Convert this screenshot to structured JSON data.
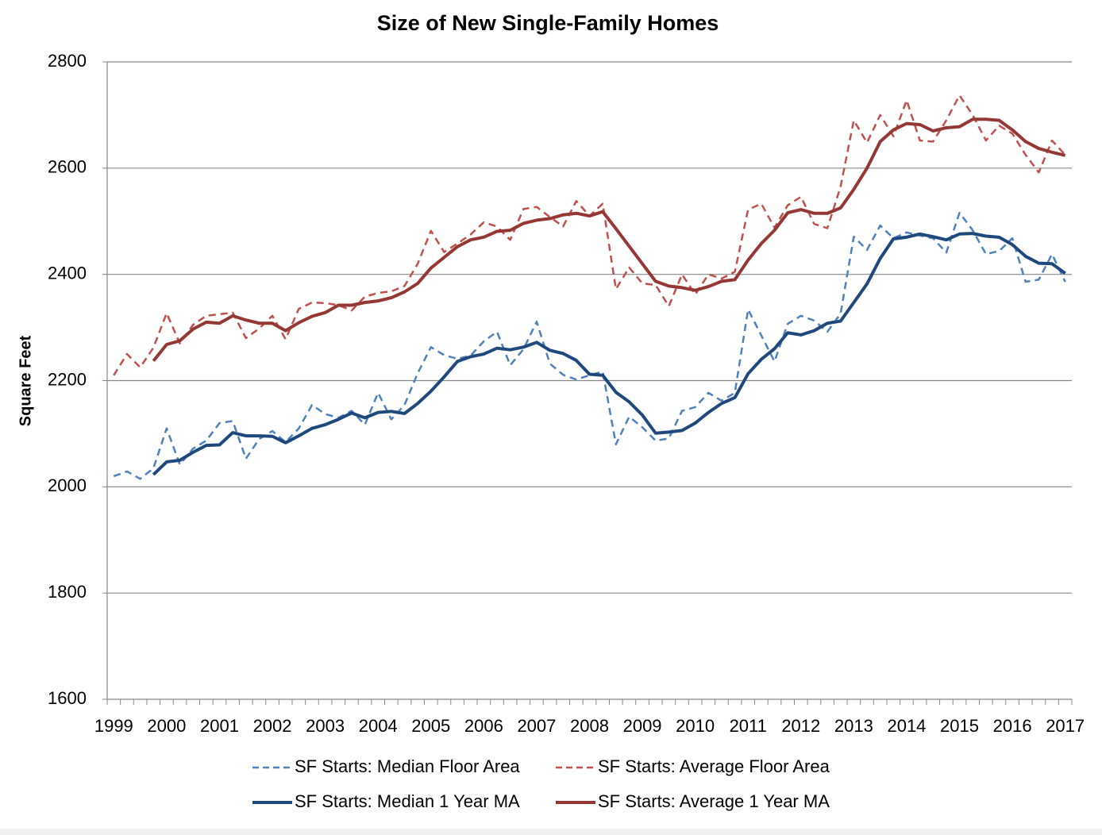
{
  "chart_data": {
    "type": "line",
    "title": "Size of New Single-Family Homes",
    "y_label": "Square Feet",
    "categories": [
      "1999",
      null,
      null,
      null,
      "2000",
      null,
      null,
      null,
      "2001",
      null,
      null,
      null,
      "2002",
      null,
      null,
      null,
      "2003",
      null,
      null,
      null,
      "2004",
      null,
      null,
      null,
      "2005",
      null,
      null,
      null,
      "2006",
      null,
      null,
      null,
      "2007",
      null,
      null,
      null,
      "2008",
      null,
      null,
      null,
      "2009",
      null,
      null,
      null,
      "2010",
      null,
      null,
      null,
      "2011",
      null,
      null,
      null,
      "2012",
      null,
      null,
      null,
      "2013",
      null,
      null,
      null,
      "2014",
      null,
      null,
      null,
      "2015",
      null,
      null,
      null,
      "2016",
      null,
      null,
      null,
      "2017"
    ],
    "series": [
      {
        "name": "SF Starts: Median Floor Area",
        "color": "#4f81bd",
        "dashed": true,
        "values": [
          2020,
          2029,
          2015,
          2035,
          2110,
          2042,
          2072,
          2087,
          2120,
          2124,
          2053,
          2090,
          2105,
          2084,
          2110,
          2154,
          2137,
          2130,
          2143,
          2117,
          2177,
          2127,
          2154,
          2214,
          2263,
          2248,
          2241,
          2247,
          2274,
          2292,
          2229,
          2259,
          2311,
          2232,
          2211,
          2202,
          2210,
          2217,
          2080,
          2132,
          2112,
          2087,
          2091,
          2143,
          2150,
          2177,
          2162,
          2177,
          2334,
          2285,
          2236,
          2307,
          2322,
          2313,
          2292,
          2326,
          2471,
          2446,
          2492,
          2468,
          2479,
          2473,
          2468,
          2441,
          2516,
          2483,
          2438,
          2444,
          2468,
          2386,
          2390,
          2438,
          2386
        ]
      },
      {
        "name": "SF Starts: Average Floor Area",
        "color": "#c0504d",
        "dashed": true,
        "values": [
          2210,
          2250,
          2225,
          2262,
          2327,
          2270,
          2305,
          2322,
          2325,
          2328,
          2280,
          2298,
          2322,
          2278,
          2335,
          2347,
          2346,
          2342,
          2332,
          2358,
          2365,
          2368,
          2378,
          2420,
          2482,
          2442,
          2458,
          2475,
          2498,
          2490,
          2465,
          2523,
          2527,
          2508,
          2490,
          2538,
          2510,
          2533,
          2372,
          2413,
          2383,
          2380,
          2340,
          2400,
          2362,
          2400,
          2392,
          2405,
          2522,
          2533,
          2488,
          2530,
          2546,
          2495,
          2487,
          2565,
          2690,
          2648,
          2700,
          2660,
          2728,
          2652,
          2650,
          2690,
          2737,
          2700,
          2652,
          2680,
          2665,
          2625,
          2592,
          2652,
          2625
        ]
      },
      {
        "name": "SF Starts: Median 1 Year MA",
        "color": "#1f497d",
        "dashed": false,
        "values": [
          null,
          null,
          null,
          2023,
          2047,
          2050,
          2065,
          2078,
          2079,
          2102,
          2096,
          2096,
          2095,
          2083,
          2096,
          2110,
          2117,
          2127,
          2139,
          2130,
          2140,
          2142,
          2138,
          2157,
          2180,
          2207,
          2236,
          2245,
          2250,
          2261,
          2258,
          2263,
          2272,
          2257,
          2251,
          2238,
          2212,
          2210,
          2178,
          2160,
          2135,
          2101,
          2103,
          2106,
          2120,
          2140,
          2157,
          2168,
          2213,
          2240,
          2260,
          2290,
          2286,
          2294,
          2308,
          2312,
          2347,
          2382,
          2430,
          2467,
          2470,
          2476,
          2471,
          2465,
          2476,
          2477,
          2472,
          2470,
          2456,
          2434,
          2421,
          2420,
          2402
        ]
      },
      {
        "name": "SF Starts: Average 1 Year MA",
        "color": "#953735",
        "dashed": false,
        "values": [
          null,
          null,
          null,
          2237,
          2268,
          2275,
          2297,
          2310,
          2308,
          2322,
          2314,
          2308,
          2308,
          2294,
          2309,
          2321,
          2328,
          2342,
          2342,
          2347,
          2350,
          2356,
          2367,
          2383,
          2412,
          2432,
          2452,
          2465,
          2470,
          2481,
          2483,
          2496,
          2502,
          2505,
          2512,
          2515,
          2510,
          2518,
          2486,
          2453,
          2420,
          2387,
          2378,
          2375,
          2370,
          2377,
          2387,
          2390,
          2427,
          2458,
          2483,
          2516,
          2522,
          2515,
          2515,
          2525,
          2560,
          2600,
          2650,
          2672,
          2684,
          2682,
          2670,
          2676,
          2678,
          2692,
          2692,
          2690,
          2672,
          2650,
          2637,
          2630,
          2624
        ]
      }
    ],
    "ylim": [
      1600,
      2800
    ],
    "yticks": [
      1600,
      1800,
      2000,
      2200,
      2400,
      2600,
      2800
    ],
    "grid": true
  }
}
